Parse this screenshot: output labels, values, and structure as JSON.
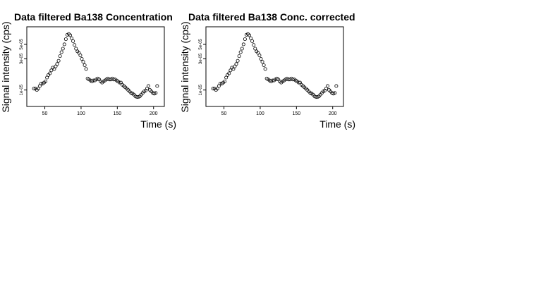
{
  "chart_data": [
    {
      "type": "scatter",
      "title": "Data filtered Ba138 Concentration",
      "xlabel": "Time (s)",
      "ylabel": "Signal intensity (cps)",
      "xlim": [
        30,
        210
      ],
      "ylim": [
        6.5e-06,
        8e-05
      ],
      "yscale": "log",
      "xticks": [
        50,
        100,
        150,
        200
      ],
      "xtick_labels": [
        "50",
        "100",
        "150",
        "200"
      ],
      "yticks": [
        1e-05,
        3e-05,
        5e-05
      ],
      "ytick_labels": [
        "1e-05",
        "3e-05",
        "5e-05"
      ],
      "x": [
        35,
        37,
        39,
        41,
        43,
        45,
        47,
        49,
        51,
        53,
        55,
        57,
        59,
        61,
        63,
        65,
        67,
        69,
        71,
        73,
        75,
        77,
        79,
        81,
        83,
        85,
        87,
        89,
        91,
        93,
        95,
        97,
        99,
        101,
        103,
        105,
        107,
        109,
        111,
        113,
        115,
        117,
        119,
        121,
        123,
        125,
        127,
        129,
        131,
        133,
        135,
        137,
        139,
        141,
        143,
        145,
        147,
        149,
        151,
        153,
        155,
        157,
        159,
        161,
        163,
        165,
        167,
        169,
        171,
        173,
        175,
        177,
        179,
        181,
        183,
        185,
        187,
        189,
        191,
        193,
        195,
        197,
        199,
        201,
        203,
        205
      ],
      "y": [
        1.05e-05,
        1.05e-05,
        1e-05,
        1.05e-05,
        1.15e-05,
        1.25e-05,
        1.25e-05,
        1.3e-05,
        1.35e-05,
        1.55e-05,
        1.7e-05,
        1.8e-05,
        2e-05,
        2.2e-05,
        2.1e-05,
        2.3e-05,
        2.5e-05,
        2.8e-05,
        3.3e-05,
        3.8e-05,
        4.3e-05,
        5e-05,
        6e-05,
        7e-05,
        7.2e-05,
        6.9e-05,
        6.2e-05,
        5.6e-05,
        4.9e-05,
        4.3e-05,
        3.9e-05,
        3.7e-05,
        3.4e-05,
        3e-05,
        2.7e-05,
        2.4e-05,
        2.1e-05,
        1.5e-05,
        1.45e-05,
        1.4e-05,
        1.35e-05,
        1.4e-05,
        1.4e-05,
        1.45e-05,
        1.5e-05,
        1.45e-05,
        1.35e-05,
        1.3e-05,
        1.35e-05,
        1.4e-05,
        1.45e-05,
        1.5e-05,
        1.45e-05,
        1.45e-05,
        1.5e-05,
        1.45e-05,
        1.45e-05,
        1.4e-05,
        1.35e-05,
        1.3e-05,
        1.3e-05,
        1.2e-05,
        1.15e-05,
        1.1e-05,
        1.05e-05,
        1e-05,
        9.5e-06,
        9e-06,
        8.8e-06,
        8.5e-06,
        8e-06,
        7.8e-06,
        7.8e-06,
        8e-06,
        8.5e-06,
        9e-06,
        9.5e-06,
        9.8e-06,
        1.05e-05,
        1.15e-05,
        1e-05,
        9.5e-06,
        9e-06,
        8.8e-06,
        9e-06,
        1.15e-05
      ]
    },
    {
      "type": "scatter",
      "title": "Data filtered Ba138 Conc. corrected",
      "xlabel": "Time (s)",
      "ylabel": "Signal intensity (cps)",
      "xlim": [
        30,
        210
      ],
      "ylim": [
        6.5e-06,
        8e-05
      ],
      "yscale": "log",
      "xticks": [
        50,
        100,
        150,
        200
      ],
      "xtick_labels": [
        "50",
        "100",
        "150",
        "200"
      ],
      "yticks": [
        1e-05,
        3e-05,
        5e-05
      ],
      "ytick_labels": [
        "1e-05",
        "3e-05",
        "5e-05"
      ],
      "x": [
        35,
        37,
        39,
        41,
        43,
        45,
        47,
        49,
        51,
        53,
        55,
        57,
        59,
        61,
        63,
        65,
        67,
        69,
        71,
        73,
        75,
        77,
        79,
        81,
        83,
        85,
        87,
        89,
        91,
        93,
        95,
        97,
        99,
        101,
        103,
        105,
        107,
        109,
        111,
        113,
        115,
        117,
        119,
        121,
        123,
        125,
        127,
        129,
        131,
        133,
        135,
        137,
        139,
        141,
        143,
        145,
        147,
        149,
        151,
        153,
        155,
        157,
        159,
        161,
        163,
        165,
        167,
        169,
        171,
        173,
        175,
        177,
        179,
        181,
        183,
        185,
        187,
        189,
        191,
        193,
        195,
        197,
        199,
        201,
        203,
        205
      ],
      "y": [
        1.05e-05,
        1.05e-05,
        1e-05,
        1.05e-05,
        1.15e-05,
        1.25e-05,
        1.25e-05,
        1.3e-05,
        1.35e-05,
        1.55e-05,
        1.7e-05,
        1.8e-05,
        2e-05,
        2.2e-05,
        2.1e-05,
        2.3e-05,
        2.5e-05,
        2.8e-05,
        3.3e-05,
        3.8e-05,
        4.3e-05,
        5e-05,
        6e-05,
        7e-05,
        7.2e-05,
        6.9e-05,
        6.2e-05,
        5.6e-05,
        4.9e-05,
        4.3e-05,
        3.9e-05,
        3.7e-05,
        3.4e-05,
        3e-05,
        2.7e-05,
        2.4e-05,
        2.1e-05,
        1.5e-05,
        1.45e-05,
        1.4e-05,
        1.35e-05,
        1.4e-05,
        1.4e-05,
        1.45e-05,
        1.5e-05,
        1.45e-05,
        1.35e-05,
        1.3e-05,
        1.35e-05,
        1.4e-05,
        1.45e-05,
        1.5e-05,
        1.45e-05,
        1.45e-05,
        1.5e-05,
        1.45e-05,
        1.45e-05,
        1.4e-05,
        1.35e-05,
        1.3e-05,
        1.3e-05,
        1.2e-05,
        1.15e-05,
        1.1e-05,
        1.05e-05,
        1e-05,
        9.5e-06,
        9e-06,
        8.8e-06,
        8.5e-06,
        8e-06,
        7.8e-06,
        7.8e-06,
        8e-06,
        8.5e-06,
        9e-06,
        9.5e-06,
        9.8e-06,
        1.05e-05,
        1.15e-05,
        1e-05,
        9.5e-06,
        9e-06,
        8.8e-06,
        9e-06,
        1.15e-05
      ]
    }
  ]
}
